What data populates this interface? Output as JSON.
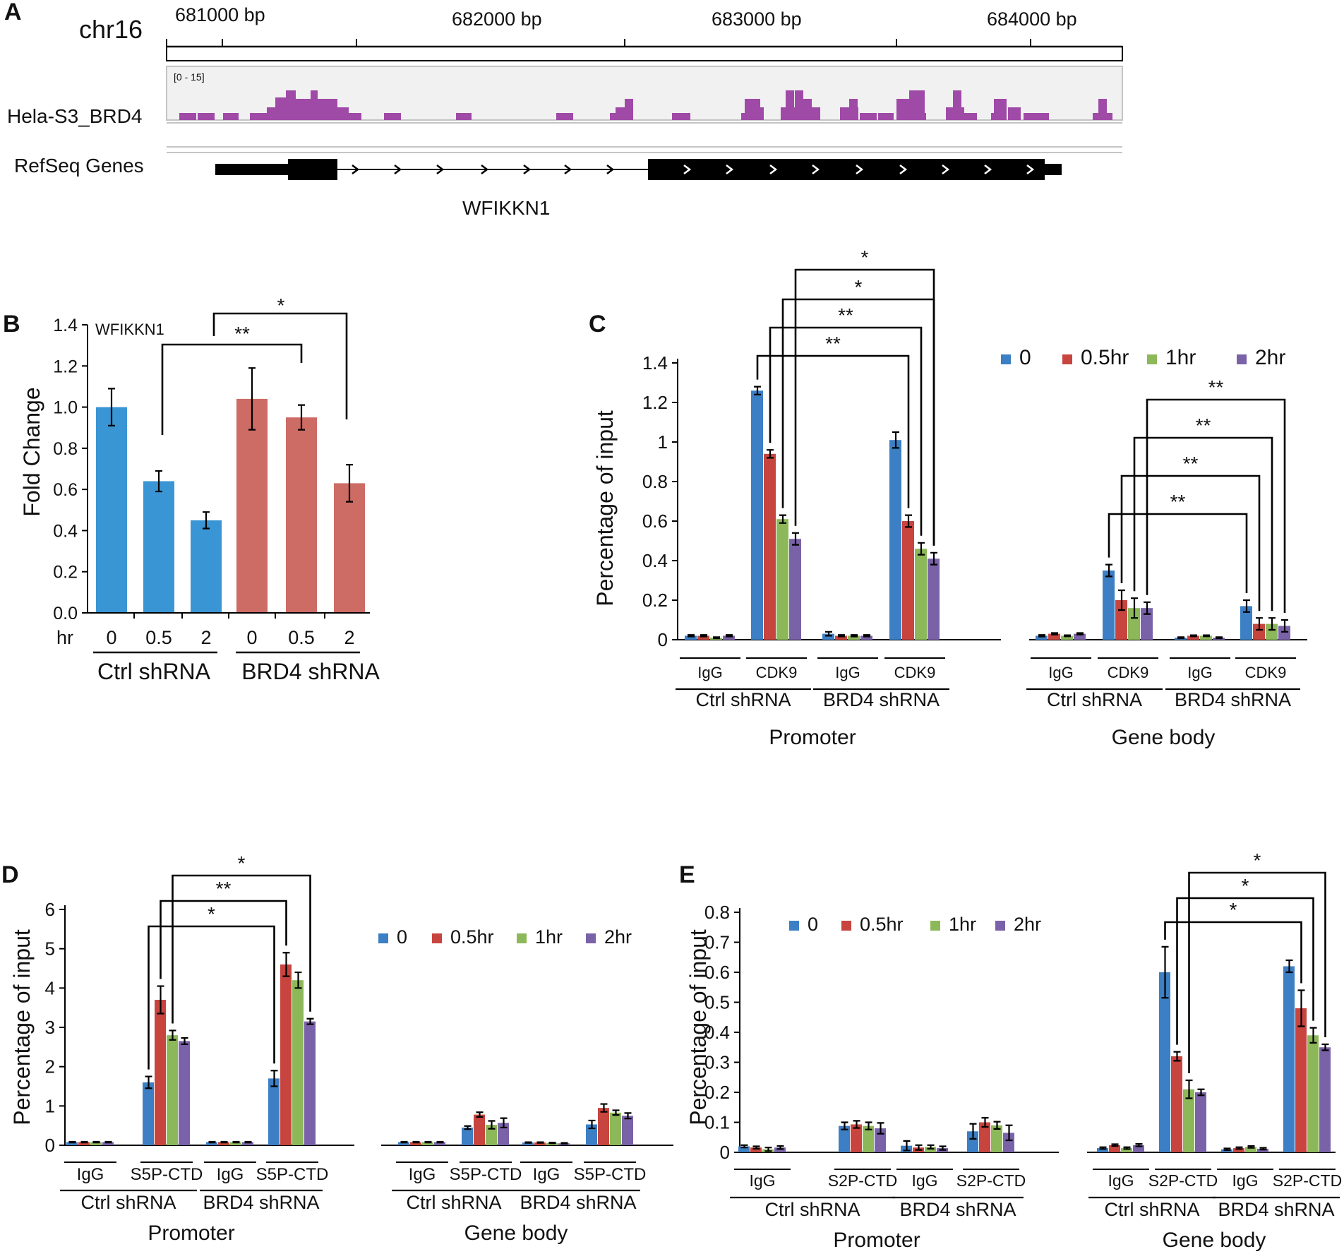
{
  "colors": {
    "s0": "#3c7fc4",
    "s05": "#c8443f",
    "s1": "#8db85a",
    "s2": "#7a62a8",
    "blue_bar": "#3a95d4",
    "red_bar": "#cd6b65",
    "track": "#a04aa8"
  },
  "panel_a": {
    "label": "A",
    "chrom": "chr16",
    "ruler_labels": [
      "681000 bp",
      "682000 bp",
      "683000 bp",
      "684000 bp"
    ],
    "track_name": "Hela-S3_BRD4",
    "track_range": "[0 - 15]",
    "genes_label": "RefSeq Genes",
    "gene_name": "WFIKKN1"
  },
  "chart_data": [
    {
      "panel": "B",
      "type": "bar",
      "title": "WFIKKN1",
      "ylabel": "Fold Change",
      "ylim": [
        0,
        1.4
      ],
      "yticks": [
        "0.0",
        "0.2",
        "0.4",
        "0.6",
        "0.8",
        "1.0",
        "1.2",
        "1.4"
      ],
      "xprefix": "hr",
      "categories": [
        "0",
        "0.5",
        "2",
        "0",
        "0.5",
        "2"
      ],
      "values": [
        1.0,
        0.64,
        0.45,
        1.04,
        0.95,
        0.63
      ],
      "errors": [
        0.09,
        0.05,
        0.04,
        0.15,
        0.06,
        0.09
      ],
      "groups": [
        "Ctrl shRNA",
        "BRD4 shRNA"
      ],
      "significance": [
        "**",
        "*"
      ]
    },
    {
      "panel": "C",
      "type": "bar",
      "ylabel": "Percentage of input",
      "ylim": [
        0,
        1.4
      ],
      "yticks": [
        "0",
        "0.2",
        "0.4",
        "0.6",
        "0.8",
        "1",
        "1.2",
        "1.4"
      ],
      "legend": [
        "0",
        "0.5hr",
        "1hr",
        "2hr"
      ],
      "groups": [
        {
          "label": "IgG",
          "values": [
            0.02,
            0.02,
            0.01,
            0.02
          ],
          "errors": [
            0.004,
            0.004,
            0.003,
            0.004
          ]
        },
        {
          "label": "CDK9",
          "values": [
            1.26,
            0.94,
            0.61,
            0.51
          ],
          "errors": [
            0.02,
            0.02,
            0.02,
            0.03
          ]
        },
        {
          "label": "IgG",
          "values": [
            0.03,
            0.02,
            0.02,
            0.02
          ],
          "errors": [
            0.01,
            0.004,
            0.004,
            0.004
          ]
        },
        {
          "label": "CDK9",
          "values": [
            1.01,
            0.6,
            0.46,
            0.41
          ],
          "errors": [
            0.04,
            0.03,
            0.03,
            0.03
          ]
        },
        {
          "label": "IgG",
          "values": [
            0.02,
            0.03,
            0.02,
            0.03
          ],
          "errors": [
            0.004,
            0.004,
            0.003,
            0.004
          ]
        },
        {
          "label": "CDK9",
          "values": [
            0.35,
            0.2,
            0.16,
            0.16
          ],
          "errors": [
            0.03,
            0.05,
            0.05,
            0.03
          ]
        },
        {
          "label": "IgG",
          "values": [
            0.01,
            0.02,
            0.02,
            0.01
          ],
          "errors": [
            0.003,
            0.003,
            0.003,
            0.003
          ]
        },
        {
          "label": "CDK9",
          "values": [
            0.17,
            0.08,
            0.08,
            0.07
          ],
          "errors": [
            0.03,
            0.03,
            0.03,
            0.03
          ]
        }
      ],
      "subgroups": [
        "Ctrl shRNA",
        "BRD4 shRNA",
        "Ctrl shRNA",
        "BRD4 shRNA"
      ],
      "regions": [
        "Promoter",
        "Gene body"
      ],
      "significance": [
        "**",
        "**",
        "*",
        "*",
        "**",
        "**",
        "**",
        "**"
      ]
    },
    {
      "panel": "D",
      "type": "bar",
      "ylabel": "Percentage of input",
      "ylim": [
        0,
        6
      ],
      "yticks": [
        "0",
        "1",
        "2",
        "3",
        "4",
        "5",
        "6"
      ],
      "legend": [
        "0",
        "0.5hr",
        "1hr",
        "2hr"
      ],
      "groups": [
        {
          "label": "IgG",
          "values": [
            0.08,
            0.08,
            0.08,
            0.08
          ],
          "errors": [
            0.01,
            0.01,
            0.01,
            0.01
          ]
        },
        {
          "label": "S5P-CTD",
          "values": [
            1.6,
            3.7,
            2.8,
            2.65
          ],
          "errors": [
            0.15,
            0.35,
            0.12,
            0.08
          ]
        },
        {
          "label": "IgG",
          "values": [
            0.08,
            0.08,
            0.08,
            0.08
          ],
          "errors": [
            0.01,
            0.01,
            0.01,
            0.01
          ]
        },
        {
          "label": "S5P-CTD",
          "values": [
            1.7,
            4.6,
            4.2,
            3.15
          ],
          "errors": [
            0.2,
            0.3,
            0.2,
            0.07
          ]
        },
        {
          "label": "IgG",
          "values": [
            0.08,
            0.08,
            0.08,
            0.08
          ],
          "errors": [
            0.01,
            0.01,
            0.01,
            0.01
          ]
        },
        {
          "label": "S5P-CTD",
          "values": [
            0.45,
            0.78,
            0.52,
            0.57
          ],
          "errors": [
            0.04,
            0.06,
            0.1,
            0.12
          ]
        },
        {
          "label": "IgG",
          "values": [
            0.07,
            0.07,
            0.06,
            0.05
          ],
          "errors": [
            0.01,
            0.01,
            0.01,
            0.01
          ]
        },
        {
          "label": "S5P-CTD",
          "values": [
            0.53,
            0.95,
            0.83,
            0.75
          ],
          "errors": [
            0.1,
            0.1,
            0.06,
            0.07
          ]
        }
      ],
      "subgroups": [
        "Ctrl shRNA",
        "BRD4 shRNA",
        "Ctrl shRNA",
        "BRD4 shRNA"
      ],
      "regions": [
        "Promoter",
        "Gene body"
      ],
      "significance": [
        "*",
        "**",
        "*"
      ]
    },
    {
      "panel": "E",
      "type": "bar",
      "ylabel": "Percentage of input",
      "ylim": [
        0,
        0.8
      ],
      "yticks": [
        "0",
        "0.1",
        "0.2",
        "0.3",
        "0.4",
        "0.5",
        "0.6",
        "0.7",
        "0.8"
      ],
      "legend": [
        "0",
        "0.5hr",
        "1hr",
        "2hr"
      ],
      "groups": [
        {
          "label": "IgG",
          "values": [
            0.02,
            0.016,
            0.01,
            0.016
          ],
          "errors": [
            0.004,
            0.004,
            0.006,
            0.005
          ]
        },
        {
          "label": "S2P-CTD",
          "values": [
            0.088,
            0.093,
            0.088,
            0.08
          ],
          "errors": [
            0.012,
            0.012,
            0.012,
            0.018
          ]
        },
        {
          "label": "IgG",
          "values": [
            0.022,
            0.016,
            0.018,
            0.014
          ],
          "errors": [
            0.016,
            0.008,
            0.006,
            0.006
          ]
        },
        {
          "label": "S2P-CTD",
          "values": [
            0.07,
            0.1,
            0.09,
            0.065
          ],
          "errors": [
            0.025,
            0.015,
            0.012,
            0.025
          ]
        },
        {
          "label": "IgG",
          "values": [
            0.014,
            0.024,
            0.014,
            0.024
          ],
          "errors": [
            0.003,
            0.003,
            0.003,
            0.004
          ]
        },
        {
          "label": "S2P-CTD",
          "values": [
            0.6,
            0.32,
            0.21,
            0.2
          ],
          "errors": [
            0.085,
            0.015,
            0.03,
            0.01
          ]
        },
        {
          "label": "IgG",
          "values": [
            0.01,
            0.014,
            0.018,
            0.012
          ],
          "errors": [
            0.003,
            0.003,
            0.003,
            0.003
          ]
        },
        {
          "label": "S2P-CTD",
          "values": [
            0.62,
            0.48,
            0.39,
            0.35
          ],
          "errors": [
            0.02,
            0.06,
            0.025,
            0.01
          ]
        }
      ],
      "subgroups": [
        "Ctrl shRNA",
        "BRD4 shRNA",
        "Ctrl shRNA",
        "BRD4 shRNA"
      ],
      "regions": [
        "Promoter",
        "Gene body"
      ],
      "significance": [
        "*",
        "*",
        "*"
      ]
    }
  ]
}
